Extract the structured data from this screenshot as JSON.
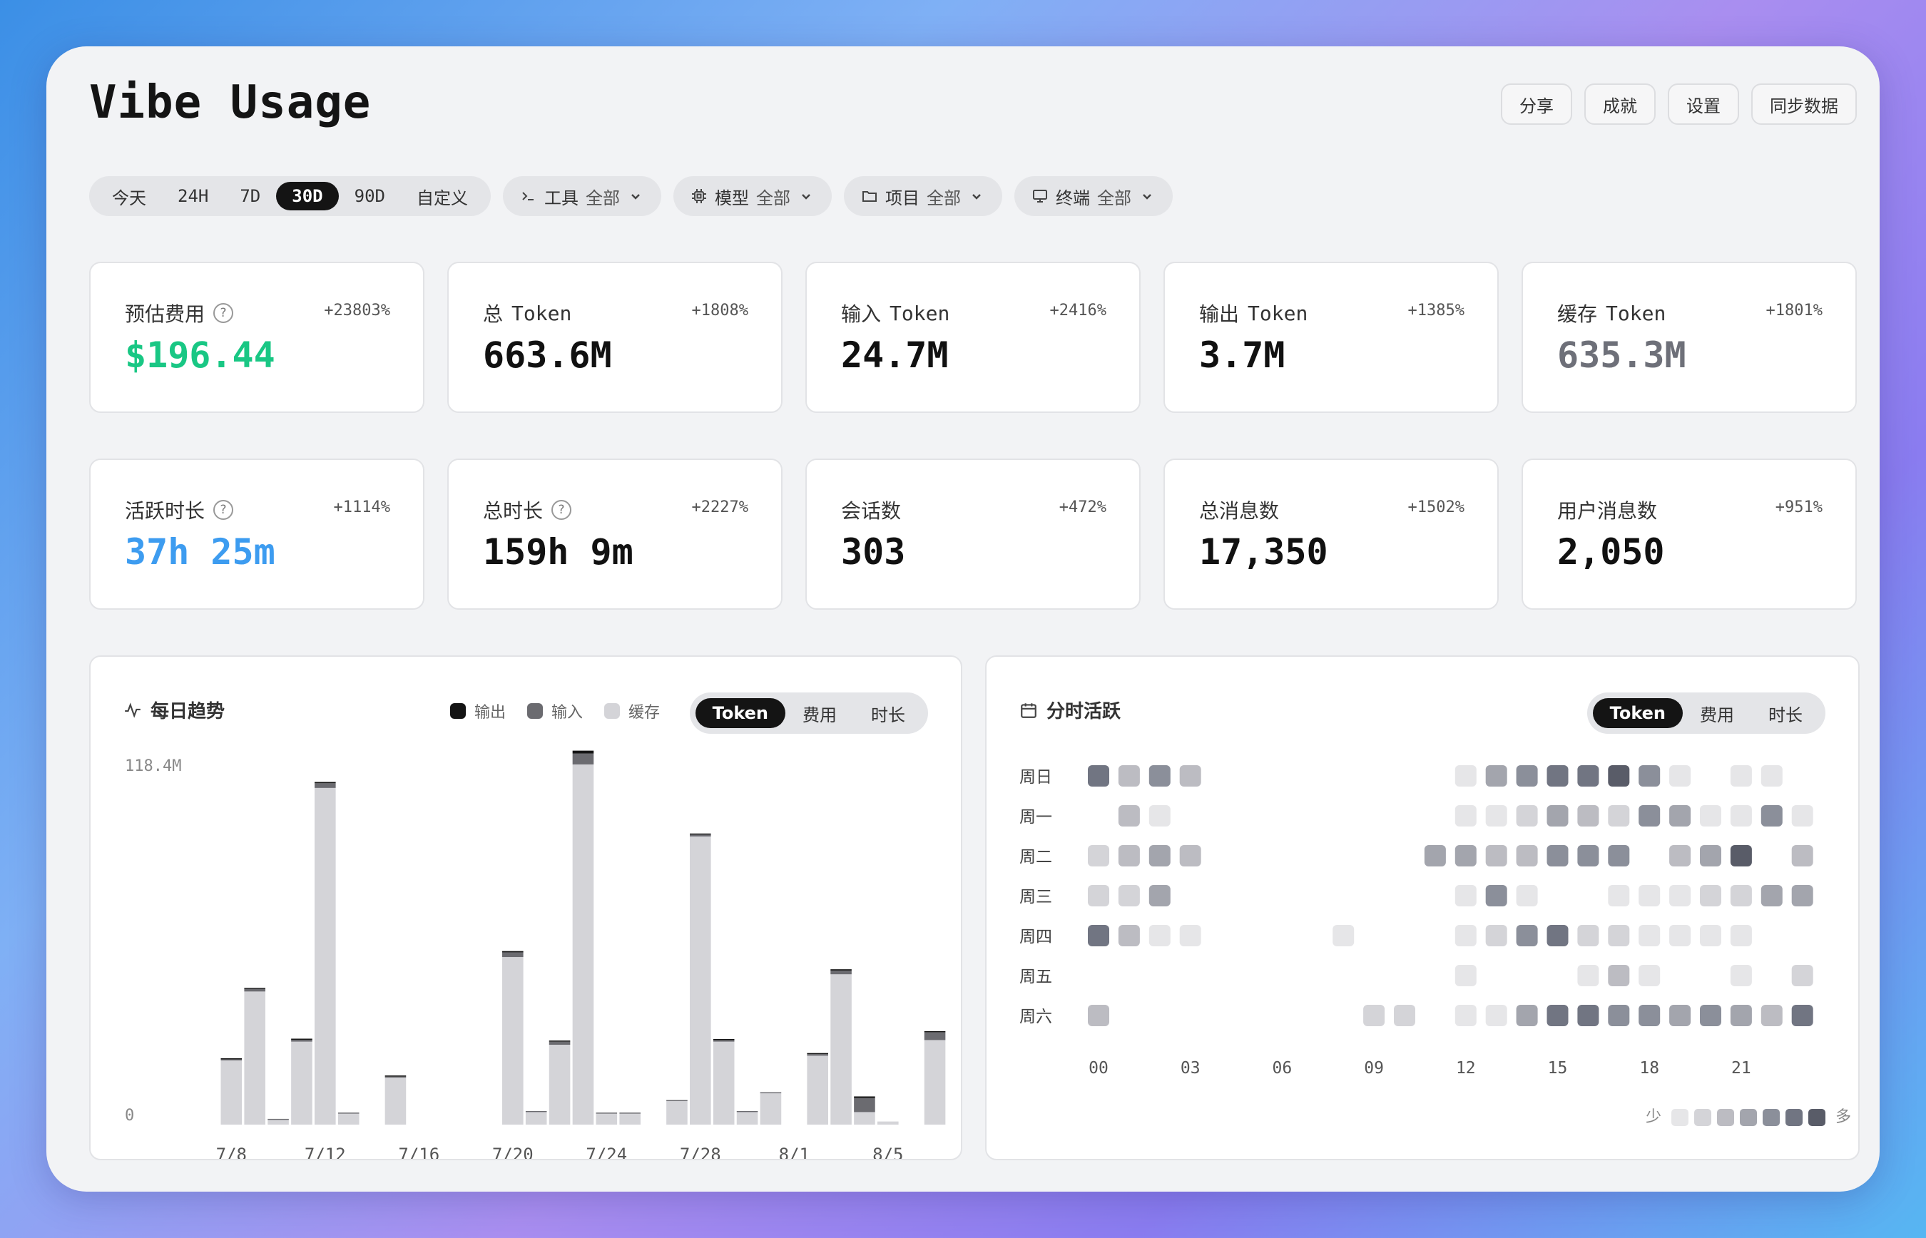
{
  "header": {
    "title": "Vibe Usage",
    "actions": [
      "分享",
      "成就",
      "设置",
      "同步数据"
    ]
  },
  "filters": {
    "ranges": [
      "今天",
      "24H",
      "7D",
      "30D",
      "90D",
      "自定义"
    ],
    "active_range": "30D",
    "tool": {
      "label": "工具",
      "value": "全部"
    },
    "model": {
      "label": "模型",
      "value": "全部"
    },
    "project": {
      "label": "项目",
      "value": "全部"
    },
    "terminal": {
      "label": "终端",
      "value": "全部"
    }
  },
  "stats": [
    {
      "label": "预估费用",
      "help": "?",
      "delta": "+23803%",
      "value": "$196.44",
      "color": "#19c784"
    },
    {
      "label": "总",
      "token": "Token",
      "delta": "+1808%",
      "value": "663.6M",
      "color": "#111111"
    },
    {
      "label": "输入",
      "token": "Token",
      "delta": "+2416%",
      "value": "24.7M",
      "color": "#111111"
    },
    {
      "label": "输出",
      "token": "Token",
      "delta": "+1385%",
      "value": "3.7M",
      "color": "#111111"
    },
    {
      "label": "缓存",
      "token": "Token",
      "delta": "+1801%",
      "value": "635.3M",
      "color": "#6e7079"
    },
    {
      "label": "活跃时长",
      "help": "?",
      "delta": "+1114%",
      "value": "37h 25m",
      "color": "#3d9cf0"
    },
    {
      "label": "总时长",
      "help": "?",
      "delta": "+2227%",
      "value": "159h 9m",
      "color": "#111111"
    },
    {
      "label": "会话数",
      "delta": "+472%",
      "value": "303",
      "color": "#111111"
    },
    {
      "label": "总消息数",
      "delta": "+1502%",
      "value": "17,350",
      "color": "#111111"
    },
    {
      "label": "用户消息数",
      "delta": "+951%",
      "value": "2,050",
      "color": "#111111"
    }
  ],
  "trend": {
    "title": "每日趋势",
    "legend": [
      {
        "name": "输出",
        "color": "#141414"
      },
      {
        "name": "输入",
        "color": "#6b6b70"
      },
      {
        "name": "缓存",
        "color": "#d4d4d8"
      }
    ],
    "tabs": [
      "Token",
      "费用",
      "时长"
    ],
    "active_tab": "Token"
  },
  "heatmap": {
    "title": "分时活跃",
    "tabs": [
      "Token",
      "费用",
      "时长"
    ],
    "active_tab": "Token",
    "days": [
      "周日",
      "周一",
      "周二",
      "周三",
      "周四",
      "周五",
      "周六"
    ],
    "hour_labels": [
      "00",
      "03",
      "06",
      "09",
      "12",
      "15",
      "18",
      "21"
    ],
    "legend_less": "少",
    "legend_more": "多",
    "palette": [
      "#e6e6e8",
      "#d4d4d8",
      "#bcbcc2",
      "#a3a5ad",
      "#8b8f9a",
      "#717582",
      "#595c68"
    ],
    "values": [
      [
        6,
        3,
        5,
        3,
        0,
        0,
        0,
        0,
        0,
        0,
        0,
        0,
        1,
        4,
        5,
        6,
        6,
        7,
        5,
        1,
        0,
        1,
        1,
        0
      ],
      [
        0,
        3,
        1,
        0,
        0,
        0,
        0,
        0,
        0,
        0,
        0,
        0,
        1,
        1,
        2,
        4,
        3,
        2,
        5,
        4,
        1,
        1,
        5,
        1
      ],
      [
        2,
        3,
        4,
        3,
        0,
        0,
        0,
        0,
        0,
        0,
        0,
        4,
        4,
        3,
        3,
        5,
        5,
        5,
        0,
        3,
        4,
        7,
        0,
        3
      ],
      [
        2,
        2,
        4,
        0,
        0,
        0,
        0,
        0,
        0,
        0,
        0,
        0,
        1,
        5,
        1,
        0,
        0,
        1,
        1,
        1,
        2,
        2,
        4,
        4
      ],
      [
        6,
        3,
        1,
        1,
        0,
        0,
        0,
        0,
        1,
        0,
        0,
        0,
        1,
        2,
        5,
        6,
        2,
        2,
        1,
        1,
        1,
        1,
        0,
        0
      ],
      [
        0,
        0,
        0,
        0,
        0,
        0,
        0,
        0,
        0,
        0,
        0,
        0,
        1,
        0,
        0,
        0,
        1,
        3,
        1,
        0,
        0,
        1,
        0,
        2
      ],
      [
        3,
        0,
        0,
        0,
        0,
        0,
        0,
        0,
        0,
        2,
        2,
        0,
        1,
        1,
        4,
        6,
        6,
        5,
        5,
        4,
        5,
        4,
        3,
        6
      ]
    ]
  },
  "chart_data": {
    "type": "bar",
    "stacked": true,
    "y_top_label": "118.4M",
    "y_zero_label": "0",
    "ylim": [
      0,
      118.4
    ],
    "x_tick_labels": [
      "7/8",
      "7/12",
      "7/16",
      "7/20",
      "7/24",
      "7/28",
      "8/1",
      "8/5"
    ],
    "categories": [
      "7/7",
      "7/8",
      "7/9",
      "7/10",
      "7/11",
      "7/12",
      "7/13",
      "7/14",
      "7/15",
      "7/16",
      "7/17",
      "7/18",
      "7/19",
      "7/20",
      "7/21",
      "7/22",
      "7/23",
      "7/24",
      "7/25",
      "7/26",
      "7/27",
      "7/28",
      "7/29",
      "7/30",
      "7/31",
      "8/1",
      "8/2",
      "8/3",
      "8/4",
      "8/5",
      "8/6",
      "8/7"
    ],
    "series": [
      {
        "name": "缓存",
        "values": [
          0,
          20.5,
          42.5,
          1.5,
          26.5,
          107.5,
          3.5,
          0,
          15,
          0,
          0,
          0,
          0,
          53.5,
          4,
          25.5,
          115,
          3.5,
          3.5,
          0,
          7.5,
          92,
          26.5,
          4,
          10,
          0,
          22,
          48,
          4,
          1,
          0,
          27
        ]
      },
      {
        "name": "输入",
        "values": [
          0,
          0.3,
          0.8,
          0.1,
          0.6,
          1.5,
          0.1,
          0,
          0.3,
          0,
          0,
          0,
          0,
          1.5,
          0.1,
          1,
          3.5,
          0.1,
          0.1,
          0,
          0.1,
          0.6,
          0.5,
          0.1,
          0.2,
          0,
          0.5,
          1.2,
          4.5,
          0,
          0,
          2.5
        ]
      },
      {
        "name": "输出",
        "values": [
          0,
          0.1,
          0.2,
          0,
          0.1,
          0.4,
          0,
          0,
          0.1,
          0,
          0,
          0,
          0,
          0.4,
          0,
          0.3,
          0.9,
          0,
          0,
          0,
          0,
          0.2,
          0.1,
          0,
          0,
          0,
          0.2,
          0.4,
          0.5,
          0,
          0,
          0.3
        ]
      }
    ]
  }
}
